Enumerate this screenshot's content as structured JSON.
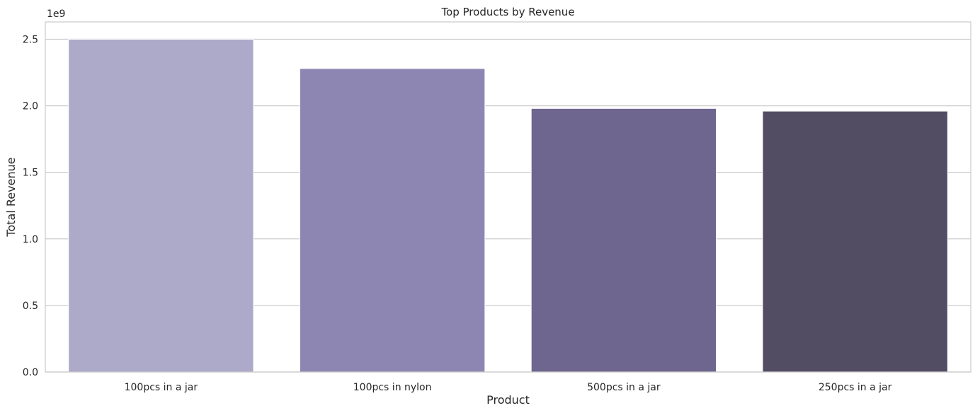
{
  "chart_data": {
    "type": "bar",
    "title": "Top Products by Revenue",
    "xlabel": "Product",
    "ylabel": "Total Revenue",
    "y_offset_label": "1e9",
    "categories": [
      "100pcs in a jar",
      "100pcs in nylon",
      "500pcs in a jar",
      "250pcs in a jar"
    ],
    "values": [
      2.5,
      2.28,
      1.98,
      1.96
    ],
    "value_scale": 1000000000,
    "ylim": [
      0,
      2.63
    ],
    "yticks": [
      0.0,
      0.5,
      1.0,
      1.5,
      2.0,
      2.5
    ],
    "ytick_labels": [
      "0.0",
      "0.5",
      "1.0",
      "1.5",
      "2.0",
      "2.5"
    ],
    "grid": "horizontal",
    "colors": [
      "#ada9c9",
      "#8d86b2",
      "#6e668e",
      "#524d63"
    ],
    "gridline_color": "#cccccc",
    "axes_edge_color": "#cccccc",
    "text_color": "#262626",
    "background": "#ffffff"
  }
}
